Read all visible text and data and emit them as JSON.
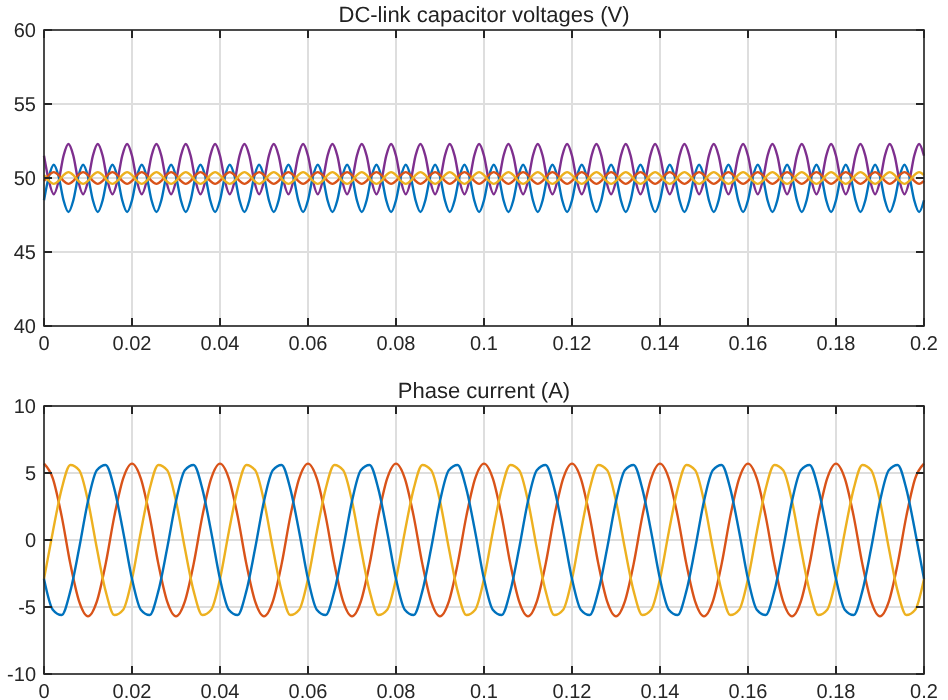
{
  "chart_data": [
    {
      "type": "line",
      "title": "DC-link capacitor voltages (V)",
      "xlim": [
        0,
        0.2
      ],
      "xticks": [
        0,
        0.02,
        0.04,
        0.06,
        0.08,
        0.1,
        0.12,
        0.14,
        0.16,
        0.18,
        0.2
      ],
      "ylim": [
        40,
        60
      ],
      "yticks": [
        40,
        45,
        50,
        55,
        60
      ],
      "grid": true,
      "x": [
        0,
        0.00111,
        0.00222,
        0.00333,
        0.00444,
        0.00556,
        0.00667,
        0.00778,
        0.00889,
        0.01,
        0.01111,
        0.01222,
        0.01333,
        0.01444,
        0.01556,
        0.01667,
        0.01778,
        0.01889,
        0.02,
        0.02111,
        0.02222,
        0.02333,
        0.02444,
        0.02556,
        0.02667,
        0.02778,
        0.02889,
        0.03,
        0.03111,
        0.03222,
        0.03333,
        0.03444,
        0.03556,
        0.03667,
        0.03778,
        0.03889,
        0.04,
        0.04111,
        0.04222,
        0.04333,
        0.04444,
        0.04556,
        0.04667,
        0.04778,
        0.04889,
        0.05,
        0.05111,
        0.05222,
        0.05333,
        0.05444,
        0.05556,
        0.05667,
        0.05778,
        0.05889,
        0.06,
        0.06111,
        0.06222,
        0.06333,
        0.06444,
        0.06556,
        0.06667,
        0.06778,
        0.06889,
        0.07,
        0.07111,
        0.07222,
        0.07333,
        0.07444,
        0.07556,
        0.07667,
        0.07778,
        0.07889,
        0.08,
        0.08111,
        0.08222,
        0.08333,
        0.08444,
        0.08556,
        0.08667,
        0.08778,
        0.08889,
        0.09,
        0.09111,
        0.09222,
        0.09333,
        0.09444,
        0.09556,
        0.09667,
        0.09778,
        0.09889,
        0.1,
        0.10111,
        0.10222,
        0.10333,
        0.10444,
        0.10556,
        0.10667,
        0.10778,
        0.10889,
        0.11,
        0.11111,
        0.11222,
        0.11333,
        0.11444,
        0.11556,
        0.11667,
        0.11778,
        0.11889,
        0.12,
        0.12111,
        0.12222,
        0.12333,
        0.12444,
        0.12556,
        0.12667,
        0.12778,
        0.12889,
        0.13,
        0.13111,
        0.13222,
        0.13333,
        0.13444,
        0.13556,
        0.13667,
        0.13778,
        0.13889,
        0.14,
        0.14111,
        0.14222,
        0.14333,
        0.14444,
        0.14556,
        0.14667,
        0.14778,
        0.14889,
        0.15,
        0.15111,
        0.15222,
        0.15333,
        0.15444,
        0.15556,
        0.15667,
        0.15778,
        0.15889,
        0.16,
        0.16111,
        0.16222,
        0.16333,
        0.16444,
        0.16556,
        0.16667,
        0.16778,
        0.16889,
        0.17,
        0.17111,
        0.17222,
        0.17333,
        0.17444,
        0.17556,
        0.17667,
        0.17778,
        0.17889,
        0.18,
        0.18111,
        0.18222,
        0.18333,
        0.18444,
        0.18556,
        0.18667,
        0.18778,
        0.18889,
        0.19,
        0.19111,
        0.19222,
        0.19333,
        0.19444,
        0.19556,
        0.19667,
        0.19778,
        0.19889,
        0.2
      ],
      "series": [
        {
          "color": "#7e2f8e",
          "values": [
            51.5,
            49.8,
            48.9,
            49.8,
            51.5,
            52.3,
            51.5,
            49.8,
            48.9,
            49.8,
            51.5,
            52.3,
            51.5,
            49.8,
            48.9,
            49.8,
            51.5,
            52.3,
            51.5,
            49.8,
            48.9,
            49.8,
            51.5,
            52.3,
            51.5,
            49.8,
            48.9,
            49.8,
            51.5,
            52.3,
            51.5,
            49.8,
            48.9,
            49.8,
            51.5,
            52.3,
            51.5,
            49.8,
            48.9,
            49.8,
            51.5,
            52.3,
            51.5,
            49.8,
            48.9,
            49.8,
            51.5,
            52.3,
            51.5,
            49.8,
            48.9,
            49.8,
            51.5,
            52.3,
            51.5,
            49.8,
            48.9,
            49.8,
            51.5,
            52.3,
            51.5,
            49.8,
            48.9,
            49.8,
            51.5,
            52.3,
            51.5,
            49.8,
            48.9,
            49.8,
            51.5,
            52.3,
            51.5,
            49.8,
            48.9,
            49.8,
            51.5,
            52.3,
            51.5,
            49.8,
            48.9,
            49.8,
            51.5,
            52.3,
            51.5,
            49.8,
            48.9,
            49.8,
            51.5,
            52.3,
            51.5,
            49.8,
            48.9,
            49.8,
            51.5,
            52.3,
            51.5,
            49.8,
            48.9,
            49.8,
            51.5,
            52.3,
            51.5,
            49.8,
            48.9,
            49.8,
            51.5,
            52.3,
            51.5,
            49.8,
            48.9,
            49.8,
            51.5,
            52.3,
            51.5,
            49.8,
            48.9,
            49.8,
            51.5,
            52.3,
            51.5,
            49.8,
            48.9,
            49.8,
            51.5,
            52.3,
            51.5,
            49.8,
            48.9,
            49.8,
            51.5,
            52.3,
            51.5,
            49.8,
            48.9,
            49.8,
            51.5,
            52.3,
            51.5,
            49.8,
            48.9,
            49.8,
            51.5,
            52.3,
            51.5,
            49.8,
            48.9,
            49.8,
            51.5,
            52.3,
            51.5,
            49.8,
            48.9,
            49.8,
            51.5,
            52.3,
            51.5,
            49.8,
            48.9,
            49.8,
            51.5,
            52.3,
            51.5,
            49.8,
            48.9,
            49.8,
            51.5,
            52.3,
            51.5,
            49.8,
            48.9,
            49.8,
            51.5,
            52.3,
            51.5,
            49.8,
            48.9,
            49.8,
            51.5,
            52.3,
            51.5
          ]
        },
        {
          "color": "#0072bd",
          "values": [
            48.5,
            50.1,
            50.9,
            50.1,
            48.5,
            47.7,
            48.5,
            50.1,
            50.9,
            50.1,
            48.5,
            47.7,
            48.5,
            50.1,
            50.9,
            50.1,
            48.5,
            47.7,
            48.5,
            50.1,
            50.9,
            50.1,
            48.5,
            47.7,
            48.5,
            50.1,
            50.9,
            50.1,
            48.5,
            47.7,
            48.5,
            50.1,
            50.9,
            50.1,
            48.5,
            47.7,
            48.5,
            50.1,
            50.9,
            50.1,
            48.5,
            47.7,
            48.5,
            50.1,
            50.9,
            50.1,
            48.5,
            47.7,
            48.5,
            50.1,
            50.9,
            50.1,
            48.5,
            47.7,
            48.5,
            50.1,
            50.9,
            50.1,
            48.5,
            47.7,
            48.5,
            50.1,
            50.9,
            50.1,
            48.5,
            47.7,
            48.5,
            50.1,
            50.9,
            50.1,
            48.5,
            47.7,
            48.5,
            50.1,
            50.9,
            50.1,
            48.5,
            47.7,
            48.5,
            50.1,
            50.9,
            50.1,
            48.5,
            47.7,
            48.5,
            50.1,
            50.9,
            50.1,
            48.5,
            47.7,
            48.5,
            50.1,
            50.9,
            50.1,
            48.5,
            47.7,
            48.5,
            50.1,
            50.9,
            50.1,
            48.5,
            47.7,
            48.5,
            50.1,
            50.9,
            50.1,
            48.5,
            47.7,
            48.5,
            50.1,
            50.9,
            50.1,
            48.5,
            47.7,
            48.5,
            50.1,
            50.9,
            50.1,
            48.5,
            47.7,
            48.5,
            50.1,
            50.9,
            50.1,
            48.5,
            47.7,
            48.5,
            50.1,
            50.9,
            50.1,
            48.5,
            47.7,
            48.5,
            50.1,
            50.9,
            50.1,
            48.5,
            47.7,
            48.5,
            50.1,
            50.9,
            50.1,
            48.5,
            47.7,
            48.5,
            50.1,
            50.9,
            50.1,
            48.5,
            47.7,
            48.5,
            50.1,
            50.9,
            50.1,
            48.5,
            47.7,
            48.5,
            50.1,
            50.9,
            50.1,
            48.5,
            47.7,
            48.5,
            50.1,
            50.9,
            50.1,
            48.5,
            47.7,
            48.5,
            50.1,
            50.9,
            50.1,
            48.5,
            47.7,
            48.5,
            50.1,
            50.9,
            50.1,
            48.5,
            47.7,
            48.5
          ]
        },
        {
          "color": "#d95319",
          "values": [
            49.8,
            50.2,
            50.4,
            50.2,
            49.8,
            49.6,
            49.8,
            50.2,
            50.4,
            50.2,
            49.8,
            49.6,
            49.8,
            50.2,
            50.4,
            50.2,
            49.8,
            49.6,
            49.8,
            50.2,
            50.4,
            50.2,
            49.8,
            49.6,
            49.8,
            50.2,
            50.4,
            50.2,
            49.8,
            49.6,
            49.8,
            50.2,
            50.4,
            50.2,
            49.8,
            49.6,
            49.8,
            50.2,
            50.4,
            50.2,
            49.8,
            49.6,
            49.8,
            50.2,
            50.4,
            50.2,
            49.8,
            49.6,
            49.8,
            50.2,
            50.4,
            50.2,
            49.8,
            49.6,
            49.8,
            50.2,
            50.4,
            50.2,
            49.8,
            49.6,
            49.8,
            50.2,
            50.4,
            50.2,
            49.8,
            49.6,
            49.8,
            50.2,
            50.4,
            50.2,
            49.8,
            49.6,
            49.8,
            50.2,
            50.4,
            50.2,
            49.8,
            49.6,
            49.8,
            50.2,
            50.4,
            50.2,
            49.8,
            49.6,
            49.8,
            50.2,
            50.4,
            50.2,
            49.8,
            49.6,
            49.8,
            50.2,
            50.4,
            50.2,
            49.8,
            49.6,
            49.8,
            50.2,
            50.4,
            50.2,
            49.8,
            49.6,
            49.8,
            50.2,
            50.4,
            50.2,
            49.8,
            49.6,
            49.8,
            50.2,
            50.4,
            50.2,
            49.8,
            49.6,
            49.8,
            50.2,
            50.4,
            50.2,
            49.8,
            49.6,
            49.8,
            50.2,
            50.4,
            50.2,
            49.8,
            49.6,
            49.8,
            50.2,
            50.4,
            50.2,
            49.8,
            49.6,
            49.8,
            50.2,
            50.4,
            50.2,
            49.8,
            49.6,
            49.8,
            50.2,
            50.4,
            50.2,
            49.8,
            49.6,
            49.8,
            50.2,
            50.4,
            50.2,
            49.8,
            49.6,
            49.8,
            50.2,
            50.4,
            50.2,
            49.8,
            49.6,
            49.8,
            50.2,
            50.4,
            50.2,
            49.8,
            49.6,
            49.8,
            50.2,
            50.4,
            50.2,
            49.8,
            49.6,
            49.8,
            50.2,
            50.4,
            50.2,
            49.8,
            49.6,
            49.8,
            50.2,
            50.4,
            50.2,
            49.8,
            49.6,
            49.8
          ]
        },
        {
          "color": "#edb120",
          "values": [
            50.2,
            49.8,
            49.6,
            49.8,
            50.2,
            50.4,
            50.2,
            49.8,
            49.6,
            49.8,
            50.2,
            50.4,
            50.2,
            49.8,
            49.6,
            49.8,
            50.2,
            50.4,
            50.2,
            49.8,
            49.6,
            49.8,
            50.2,
            50.4,
            50.2,
            49.8,
            49.6,
            49.8,
            50.2,
            50.4,
            50.2,
            49.8,
            49.6,
            49.8,
            50.2,
            50.4,
            50.2,
            49.8,
            49.6,
            49.8,
            50.2,
            50.4,
            50.2,
            49.8,
            49.6,
            49.8,
            50.2,
            50.4,
            50.2,
            49.8,
            49.6,
            49.8,
            50.2,
            50.4,
            50.2,
            49.8,
            49.6,
            49.8,
            50.2,
            50.4,
            50.2,
            49.8,
            49.6,
            49.8,
            50.2,
            50.4,
            50.2,
            49.8,
            49.6,
            49.8,
            50.2,
            50.4,
            50.2,
            49.8,
            49.6,
            49.8,
            50.2,
            50.4,
            50.2,
            49.8,
            49.6,
            49.8,
            50.2,
            50.4,
            50.2,
            49.8,
            49.6,
            49.8,
            50.2,
            50.4,
            50.2,
            49.8,
            49.6,
            49.8,
            50.2,
            50.4,
            50.2,
            49.8,
            49.6,
            49.8,
            50.2,
            50.4,
            50.2,
            49.8,
            49.6,
            49.8,
            50.2,
            50.4,
            50.2,
            49.8,
            49.6,
            49.8,
            50.2,
            50.4,
            50.2,
            49.8,
            49.6,
            49.8,
            50.2,
            50.4,
            50.2,
            49.8,
            49.6,
            49.8,
            50.2,
            50.4,
            50.2,
            49.8,
            49.6,
            49.8,
            50.2,
            50.4,
            50.2,
            49.8,
            49.6,
            49.8,
            50.2,
            50.4,
            50.2,
            49.8,
            49.6,
            49.8,
            50.2,
            50.4,
            50.2,
            49.8,
            49.6,
            49.8,
            50.2,
            50.4,
            50.2,
            49.8,
            49.6,
            49.8,
            50.2,
            50.4,
            50.2,
            49.8,
            49.6,
            49.8,
            50.2,
            50.4,
            50.2,
            49.8,
            49.6,
            49.8,
            50.2,
            50.4,
            50.2,
            49.8,
            49.6,
            49.8,
            50.2,
            50.4,
            50.2,
            49.8,
            49.6,
            49.8,
            50.2,
            50.4,
            50.2
          ]
        }
      ]
    },
    {
      "type": "line",
      "title": "Phase current (A)",
      "xlim": [
        0,
        0.2
      ],
      "xticks": [
        0,
        0.02,
        0.04,
        0.06,
        0.08,
        0.1,
        0.12,
        0.14,
        0.16,
        0.18,
        0.2
      ],
      "ylim": [
        -10,
        10
      ],
      "yticks": [
        -10,
        -5,
        0,
        5,
        10
      ],
      "grid": true,
      "x": [
        0,
        0.002,
        0.004,
        0.006,
        0.008,
        0.01,
        0.012,
        0.014,
        0.016,
        0.018,
        0.02,
        0.022,
        0.024,
        0.026,
        0.028,
        0.03,
        0.032,
        0.034,
        0.036,
        0.038,
        0.04,
        0.042,
        0.044,
        0.046,
        0.048,
        0.05,
        0.052,
        0.054,
        0.056,
        0.058,
        0.06,
        0.062,
        0.064,
        0.066,
        0.068,
        0.07,
        0.072,
        0.074,
        0.076,
        0.078,
        0.08,
        0.082,
        0.084,
        0.086,
        0.088,
        0.09,
        0.092,
        0.094,
        0.096,
        0.098,
        0.1,
        0.102,
        0.104,
        0.106,
        0.108,
        0.11,
        0.112,
        0.114,
        0.116,
        0.118,
        0.12,
        0.122,
        0.124,
        0.126,
        0.128,
        0.13,
        0.132,
        0.134,
        0.136,
        0.138,
        0.14,
        0.142,
        0.144,
        0.146,
        0.148,
        0.15,
        0.152,
        0.154,
        0.156,
        0.158,
        0.16,
        0.162,
        0.164,
        0.166,
        0.168,
        0.17,
        0.172,
        0.174,
        0.176,
        0.178,
        0.18,
        0.182,
        0.184,
        0.186,
        0.188,
        0.19,
        0.192,
        0.194,
        0.196,
        0.198,
        0.2
      ],
      "series": [
        {
          "color": "#d95319",
          "values": [
            5.7,
            4.6,
            1.8,
            -1.8,
            -4.6,
            -5.7,
            -4.6,
            -1.8,
            1.8,
            4.6,
            5.7,
            4.6,
            1.8,
            -1.8,
            -4.6,
            -5.7,
            -4.6,
            -1.8,
            1.8,
            4.6,
            5.7,
            4.6,
            1.8,
            -1.8,
            -4.6,
            -5.7,
            -4.6,
            -1.8,
            1.8,
            4.6,
            5.7,
            4.6,
            1.8,
            -1.8,
            -4.6,
            -5.7,
            -4.6,
            -1.8,
            1.8,
            4.6,
            5.7,
            4.6,
            1.8,
            -1.8,
            -4.6,
            -5.7,
            -4.6,
            -1.8,
            1.8,
            4.6,
            5.7,
            4.6,
            1.8,
            -1.8,
            -4.6,
            -5.7,
            -4.6,
            -1.8,
            1.8,
            4.6,
            5.7,
            4.6,
            1.8,
            -1.8,
            -4.6,
            -5.7,
            -4.6,
            -1.8,
            1.8,
            4.6,
            5.7,
            4.6,
            1.8,
            -1.8,
            -4.6,
            -5.7,
            -4.6,
            -1.8,
            1.8,
            4.6,
            5.7,
            4.6,
            1.8,
            -1.8,
            -4.6,
            -5.7,
            -4.6,
            -1.8,
            1.8,
            4.6,
            5.7,
            4.6,
            1.8,
            -1.8,
            -4.6,
            -5.7,
            -4.6,
            -1.8,
            1.8,
            4.6,
            5.7
          ]
        },
        {
          "color": "#edb120",
          "values": [
            -2.9,
            0.6,
            3.8,
            5.6,
            5.2,
            2.9,
            -0.6,
            -3.8,
            -5.6,
            -5.2,
            -2.9,
            0.6,
            3.8,
            5.6,
            5.2,
            2.9,
            -0.6,
            -3.8,
            -5.6,
            -5.2,
            -2.9,
            0.6,
            3.8,
            5.6,
            5.2,
            2.9,
            -0.6,
            -3.8,
            -5.6,
            -5.2,
            -2.9,
            0.6,
            3.8,
            5.6,
            5.2,
            2.9,
            -0.6,
            -3.8,
            -5.6,
            -5.2,
            -2.9,
            0.6,
            3.8,
            5.6,
            5.2,
            2.9,
            -0.6,
            -3.8,
            -5.6,
            -5.2,
            -2.9,
            0.6,
            3.8,
            5.6,
            5.2,
            2.9,
            -0.6,
            -3.8,
            -5.6,
            -5.2,
            -2.9,
            0.6,
            3.8,
            5.6,
            5.2,
            2.9,
            -0.6,
            -3.8,
            -5.6,
            -5.2,
            -2.9,
            0.6,
            3.8,
            5.6,
            5.2,
            2.9,
            -0.6,
            -3.8,
            -5.6,
            -5.2,
            -2.9,
            0.6,
            3.8,
            5.6,
            5.2,
            2.9,
            -0.6,
            -3.8,
            -5.6,
            -5.2,
            -2.9,
            0.6,
            3.8,
            5.6,
            5.2,
            2.9,
            -0.6,
            -3.8,
            -5.6,
            -5.2,
            -2.9
          ]
        },
        {
          "color": "#0072bd",
          "values": [
            -2.9,
            -5.2,
            -5.6,
            -3.8,
            -0.6,
            2.9,
            5.2,
            5.6,
            3.8,
            0.6,
            -2.9,
            -5.2,
            -5.6,
            -3.8,
            -0.6,
            2.9,
            5.2,
            5.6,
            3.8,
            0.6,
            -2.9,
            -5.2,
            -5.6,
            -3.8,
            -0.6,
            2.9,
            5.2,
            5.6,
            3.8,
            0.6,
            -2.9,
            -5.2,
            -5.6,
            -3.8,
            -0.6,
            2.9,
            5.2,
            5.6,
            3.8,
            0.6,
            -2.9,
            -5.2,
            -5.6,
            -3.8,
            -0.6,
            2.9,
            5.2,
            5.6,
            3.8,
            0.6,
            -2.9,
            -5.2,
            -5.6,
            -3.8,
            -0.6,
            2.9,
            5.2,
            5.6,
            3.8,
            0.6,
            -2.9,
            -5.2,
            -5.6,
            -3.8,
            -0.6,
            2.9,
            5.2,
            5.6,
            3.8,
            0.6,
            -2.9,
            -5.2,
            -5.6,
            -3.8,
            -0.6,
            2.9,
            5.2,
            5.6,
            3.8,
            0.6,
            -2.9,
            -5.2,
            -5.6,
            -3.8,
            -0.6,
            2.9,
            5.2,
            5.6,
            3.8,
            0.6,
            -2.9,
            -5.2,
            -5.6,
            -3.8,
            -0.6,
            2.9,
            5.2,
            5.6,
            3.8,
            0.6,
            -2.9
          ]
        }
      ]
    }
  ]
}
